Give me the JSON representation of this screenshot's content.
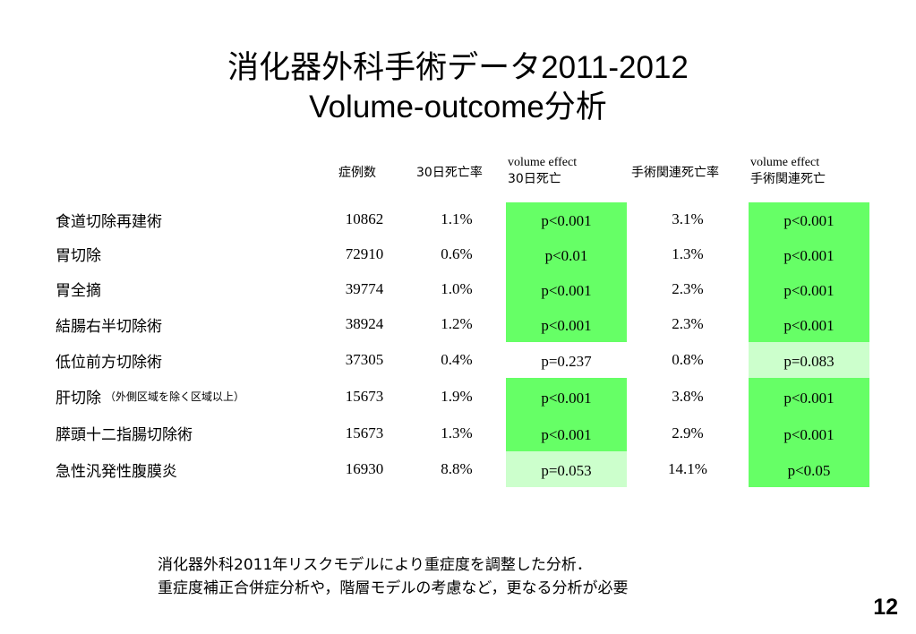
{
  "title": {
    "line1": "消化器外科手術データ2011-2012",
    "line2": "Volume-outcome分析"
  },
  "table": {
    "headers": {
      "cases": "症例数",
      "mortality30": "30日死亡率",
      "volume_effect30_line1": "volume effect",
      "volume_effect30_line2": "30日死亡",
      "op_mortality": "手術関連死亡率",
      "volume_effect_op_line1": "volume effect",
      "volume_effect_op_line2": "手術関連死亡"
    },
    "colors": {
      "significant": "#66ff66",
      "marginal": "#ccffcc"
    },
    "rows": [
      {
        "name": "食道切除再建術",
        "note": "",
        "cases": "10862",
        "mortality30": "1.1%",
        "p30": "p<0.001",
        "p30_level": "significant",
        "op_mortality": "3.1%",
        "pop": "p<0.001",
        "pop_level": "significant"
      },
      {
        "name": "胃切除",
        "note": "",
        "cases": "72910",
        "mortality30": "0.6%",
        "p30": "p<0.01",
        "p30_level": "significant",
        "op_mortality": "1.3%",
        "pop": "p<0.001",
        "pop_level": "significant"
      },
      {
        "name": "胃全摘",
        "note": "",
        "cases": "39774",
        "mortality30": "1.0%",
        "p30": "p<0.001",
        "p30_level": "significant",
        "op_mortality": "2.3%",
        "pop": "p<0.001",
        "pop_level": "significant"
      },
      {
        "name": "結腸右半切除術",
        "note": "",
        "cases": "38924",
        "mortality30": "1.2%",
        "p30": "p<0.001",
        "p30_level": "significant",
        "op_mortality": "2.3%",
        "pop": "p<0.001",
        "pop_level": "significant"
      },
      {
        "name": "低位前方切除術",
        "note": "",
        "cases": "37305",
        "mortality30": "0.4%",
        "p30": "p=0.237",
        "p30_level": "none",
        "op_mortality": "0.8%",
        "pop": "p=0.083",
        "pop_level": "marginal"
      },
      {
        "name": "肝切除",
        "note": "（外側区域を除く区域以上）",
        "cases": "15673",
        "mortality30": "1.9%",
        "p30": "p<0.001",
        "p30_level": "significant",
        "op_mortality": "3.8%",
        "pop": "p<0.001",
        "pop_level": "significant"
      },
      {
        "name": "膵頭十二指腸切除術",
        "note": "",
        "cases": "15673",
        "mortality30": "1.3%",
        "p30": "p<0.001",
        "p30_level": "significant",
        "op_mortality": "2.9%",
        "pop": "p<0.001",
        "pop_level": "significant"
      },
      {
        "name": "急性汎発性腹膜炎",
        "note": "",
        "cases": "16930",
        "mortality30": "8.8%",
        "p30": "p=0.053",
        "p30_level": "marginal",
        "op_mortality": "14.1%",
        "pop": "p<0.05",
        "pop_level": "significant"
      }
    ]
  },
  "notes": {
    "line1": "消化器外科2011年リスクモデルにより重症度を調整した分析．",
    "line2": "重症度補正合併症分析や，階層モデルの考慮など，更なる分析が必要"
  },
  "page_number": "12"
}
